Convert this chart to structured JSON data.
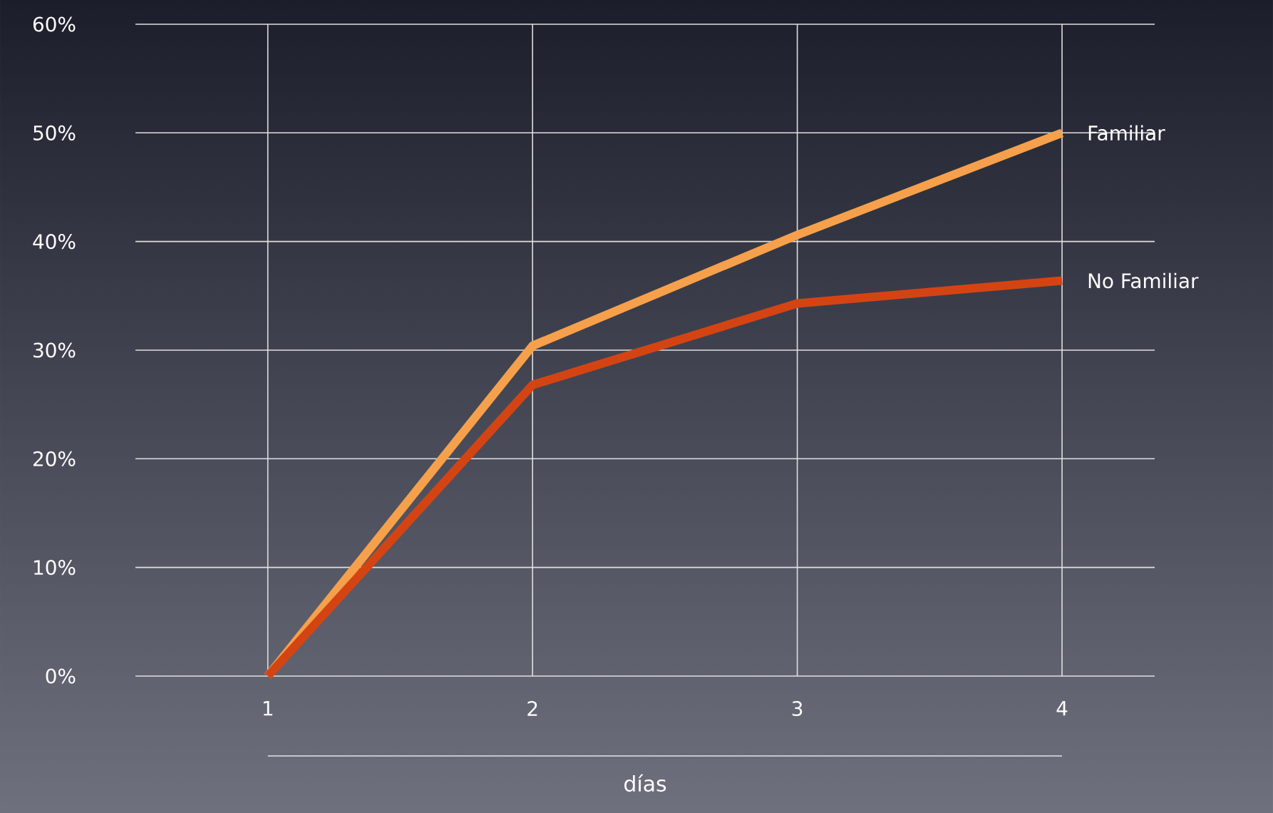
{
  "chart_data": {
    "type": "line",
    "xlabel": "días",
    "x": [
      1,
      2,
      3,
      4
    ],
    "series": [
      {
        "name": "Familiar",
        "color": "#f7a04b",
        "values": [
          0,
          30.4,
          40.6,
          50
        ]
      },
      {
        "name": "No Familiar",
        "color": "#d44413",
        "values": [
          0,
          26.8,
          34.3,
          36.4
        ]
      }
    ],
    "xlim": [
      0.5,
      4.35
    ],
    "ylim": [
      0,
      60
    ],
    "xticks": [
      1,
      2,
      3,
      4
    ],
    "yticks": [
      {
        "value": 0,
        "label": "0%"
      },
      {
        "value": 10,
        "label": "10%"
      },
      {
        "value": 20,
        "label": "20%"
      },
      {
        "value": 30,
        "label": "30%"
      },
      {
        "value": 40,
        "label": "40%"
      },
      {
        "value": 50,
        "label": "50%"
      },
      {
        "value": 60,
        "label": "60%"
      }
    ],
    "grid": true,
    "legend": false,
    "marker": "none",
    "line_style": "solid"
  }
}
